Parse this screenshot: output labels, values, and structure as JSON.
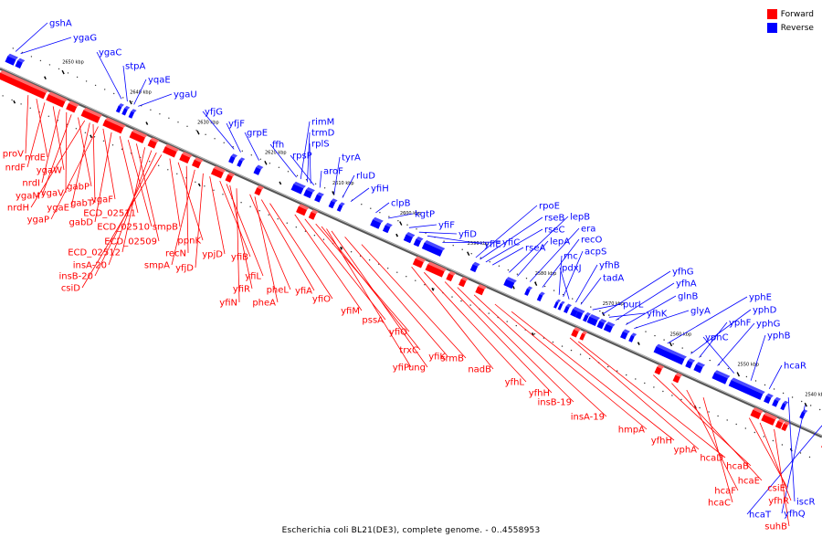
{
  "colors": {
    "forward": "#ff0000",
    "reverse": "#0000ff",
    "backbone": "#666666"
  },
  "legend": [
    {
      "label": "Forward",
      "color": "#ff0000"
    },
    {
      "label": "Reverse",
      "color": "#0000ff"
    }
  ],
  "caption": "Escherichia coli BL21(DE3), complete genome. - 0..4558953",
  "ticks": [
    "2650 kbp",
    "2640 kbp",
    "2630 kbp",
    "2620 kbp",
    "2610 kbp",
    "2600 kbp",
    "2590 kbp",
    "2580 kbp",
    "2570 kbp",
    "2560 kbp",
    "2550 kbp",
    "2540 kbp"
  ],
  "reverse_labels": [
    "gshA",
    "ygaG",
    "ygaC",
    "stpA",
    "yqaE",
    "ygaU",
    "yfjG",
    "yfjF",
    "grpE",
    "ffh",
    "rimM",
    "trmD",
    "rplS",
    "rpsP",
    "aroF",
    "tyrA",
    "rluD",
    "yfiH",
    "clpB",
    "kgtP",
    "yfiF",
    "yfiD",
    "yfiE",
    "yfiC",
    "rpoE",
    "rseB",
    "rseC",
    "rseA",
    "lepB",
    "lepA",
    "era",
    "recO",
    "rnc",
    "acpS",
    "pdxJ",
    "yfhB",
    "tadA",
    "purL",
    "yfhG",
    "yfhK",
    "yfhA",
    "glnB",
    "glyA",
    "yphE",
    "yphD",
    "yphF",
    "yphG",
    "yphC",
    "yphB",
    "hcaR",
    "iscR",
    "yfhQ",
    "hcaT"
  ],
  "forward_labels": [
    "proV",
    "nrdE",
    "nrdF",
    "ygaW",
    "nrdI",
    "ygaV",
    "ygaM",
    "gabP",
    "nrdH",
    "ygaE",
    "gabT",
    "ygaP",
    "ygaF",
    "gabD",
    "ECD_02511",
    "ECD_02510",
    "ECD_02509",
    "ECD_02512",
    "insA-20",
    "insB-20",
    "csiD",
    "smpB",
    "ppnK",
    "recN",
    "smpA",
    "yfjD",
    "ypjD",
    "yfiB",
    "yfiL",
    "yfiR",
    "yfiN",
    "pheL",
    "pheA",
    "yfiA",
    "yfiO",
    "yfiM",
    "pssA",
    "yfiQ",
    "trxC",
    "yfiP",
    "ung",
    "yfiK",
    "srmB",
    "nadB",
    "yfhL",
    "yfhH",
    "insB-19",
    "insA-19",
    "hmpA",
    "yfhH",
    "yphA",
    "hcaD",
    "hcaB",
    "hcaE",
    "hcaF",
    "hcaC",
    "csiE",
    "yfhR",
    "suhB"
  ]
}
